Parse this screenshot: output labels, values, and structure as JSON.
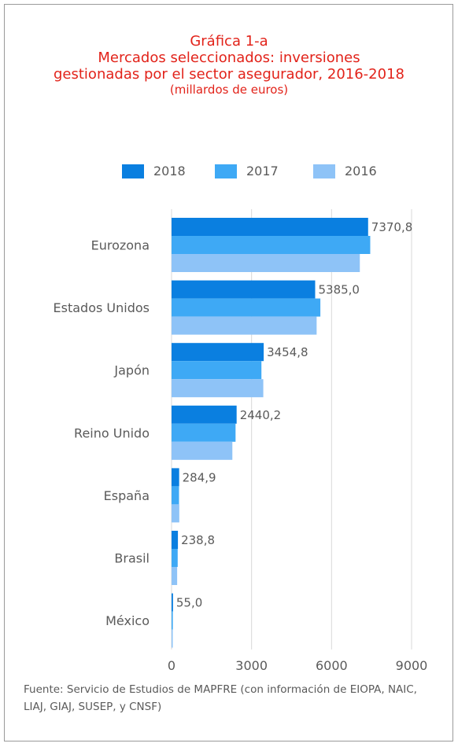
{
  "title": {
    "line1": "Gráfica 1-a",
    "line2": "Mercados seleccionados: inversiones",
    "line3": "gestionadas por el sector asegurador, 2016-2018",
    "subtitle": "(millardos de euros)"
  },
  "colors": {
    "accent": "#e2231a",
    "s2018": "#0a7fe0",
    "s2017": "#3ea9f5",
    "s2016": "#8ec3f7",
    "text": "#5a5a5a",
    "grid": "#d9d9d9"
  },
  "chart_data": {
    "type": "bar",
    "orientation": "horizontal",
    "title": "Mercados seleccionados: inversiones gestionadas por el sector asegurador, 2016-2018",
    "subtitle": "(millardos de euros)",
    "categories": [
      "Eurozona",
      "Estados Unidos",
      "Japón",
      "Reino Unido",
      "España",
      "Brasil",
      "México"
    ],
    "series": [
      {
        "name": "2018",
        "values": [
          7370.8,
          5385.0,
          3454.8,
          2440.2,
          284.9,
          238.8,
          55.0
        ]
      },
      {
        "name": "2017",
        "values": [
          7450,
          5580,
          3370,
          2400,
          280,
          230,
          48
        ]
      },
      {
        "name": "2016",
        "values": [
          7060,
          5440,
          3440,
          2280,
          290,
          210,
          45
        ]
      }
    ],
    "data_labels": [
      "7370,8",
      "5385,0",
      "3454,8",
      "2440,2",
      "284,9",
      "238,8",
      "55,0"
    ],
    "xlim": [
      0,
      9000
    ],
    "xticks": [
      0,
      3000,
      6000,
      9000
    ],
    "xtick_labels": [
      "0",
      "3000",
      "6000",
      "9000"
    ],
    "grid": true,
    "legend_position": "top"
  },
  "source": "Fuente: Servicio de Estudios de MAPFRE (con información de EIOPA, NAIC, LIAJ, GIAJ, SUSEP, y CNSF)"
}
